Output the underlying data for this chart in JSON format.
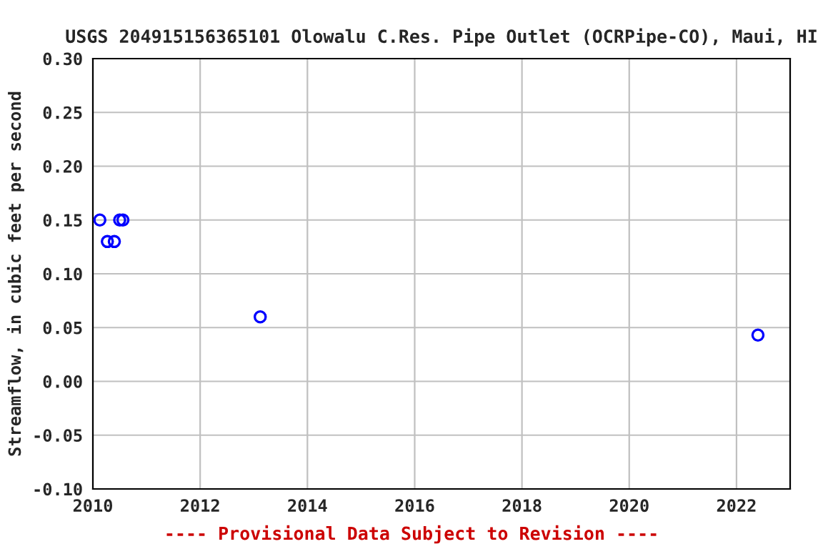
{
  "chart_data": {
    "type": "scatter",
    "title": "USGS 204915156365101 Olowalu C.Res. Pipe Outlet (OCRPipe-CO), Maui, HI",
    "ylabel": "Streamflow, in cubic feet per second",
    "annotations": [
      "---- Provisional Data Subject to Revision ----"
    ],
    "x": [
      2010.13,
      2010.27,
      2010.4,
      2010.5,
      2010.56,
      2013.12,
      2022.4
    ],
    "series": [
      {
        "color": "#0000ff",
        "values": [
          0.15,
          0.13,
          0.13,
          0.15,
          0.15,
          0.06,
          0.043
        ]
      }
    ],
    "xlim": [
      2010,
      2023
    ],
    "xticks": [
      2010,
      2012,
      2014,
      2016,
      2018,
      2020,
      2022
    ],
    "ylim": [
      -0.1,
      0.3
    ],
    "yticks": [
      {
        "value": -0.1,
        "label": "-0.10"
      },
      {
        "value": -0.05,
        "label": "-0.05"
      },
      {
        "value": 0,
        "label": "0.00"
      },
      {
        "value": 0.05,
        "label": "0.05"
      },
      {
        "value": 0.1,
        "label": "0.10"
      },
      {
        "value": 0.15,
        "label": "0.15"
      },
      {
        "value": 0.2,
        "label": "0.20"
      },
      {
        "value": 0.25,
        "label": "0.25"
      },
      {
        "value": 0.3,
        "label": "0.30"
      }
    ],
    "grid": true,
    "marker": "circle"
  }
}
